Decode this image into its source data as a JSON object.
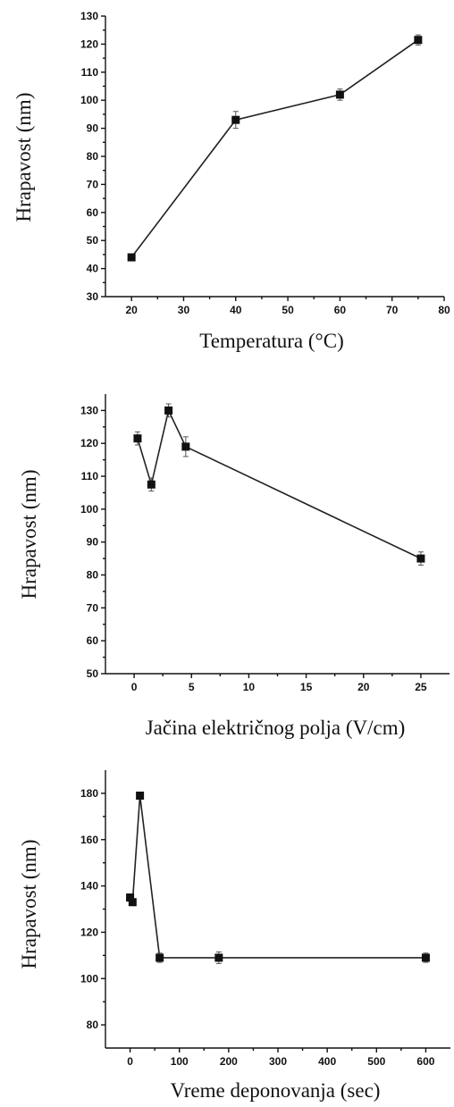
{
  "chart_data": [
    {
      "type": "line",
      "xlabel": "Temperatura (°C)",
      "ylabel": "Hrapavost (nm)",
      "xlim": [
        15,
        80
      ],
      "ylim": [
        30,
        130
      ],
      "xticks": [
        20,
        30,
        40,
        50,
        60,
        70,
        80
      ],
      "yticks": [
        30,
        40,
        50,
        60,
        70,
        80,
        90,
        100,
        110,
        120,
        130
      ],
      "x": [
        20,
        40,
        60,
        75
      ],
      "y": [
        44,
        93,
        102,
        121.5
      ],
      "errors": [
        1.2,
        3,
        2,
        1.8
      ]
    },
    {
      "type": "line",
      "xlabel": "Jačina električnog polja (V/cm)",
      "ylabel": "Hrapavost (nm)",
      "xlim": [
        -2.5,
        27.5
      ],
      "ylim": [
        50,
        135
      ],
      "xticks": [
        0,
        5,
        10,
        15,
        20,
        25
      ],
      "yticks": [
        50,
        60,
        70,
        80,
        90,
        100,
        110,
        120,
        130
      ],
      "x": [
        0.3,
        1.5,
        3,
        4.5,
        25
      ],
      "y": [
        121.5,
        107.5,
        130,
        119,
        85
      ],
      "errors": [
        2,
        2,
        2,
        3,
        2
      ]
    },
    {
      "type": "line",
      "xlabel": "Vreme deponovanja (sec)",
      "ylabel": "Hrapavost (nm)",
      "xlim": [
        -50,
        650
      ],
      "ylim": [
        70,
        190
      ],
      "xticks": [
        0,
        100,
        200,
        300,
        400,
        500,
        600
      ],
      "yticks": [
        80,
        100,
        120,
        140,
        160,
        180
      ],
      "x": [
        0,
        5,
        20,
        60,
        180,
        600
      ],
      "y": [
        135,
        133,
        179,
        109,
        109,
        109
      ],
      "errors": [
        1.5,
        1.5,
        1.5,
        2,
        2.5,
        2
      ]
    }
  ]
}
